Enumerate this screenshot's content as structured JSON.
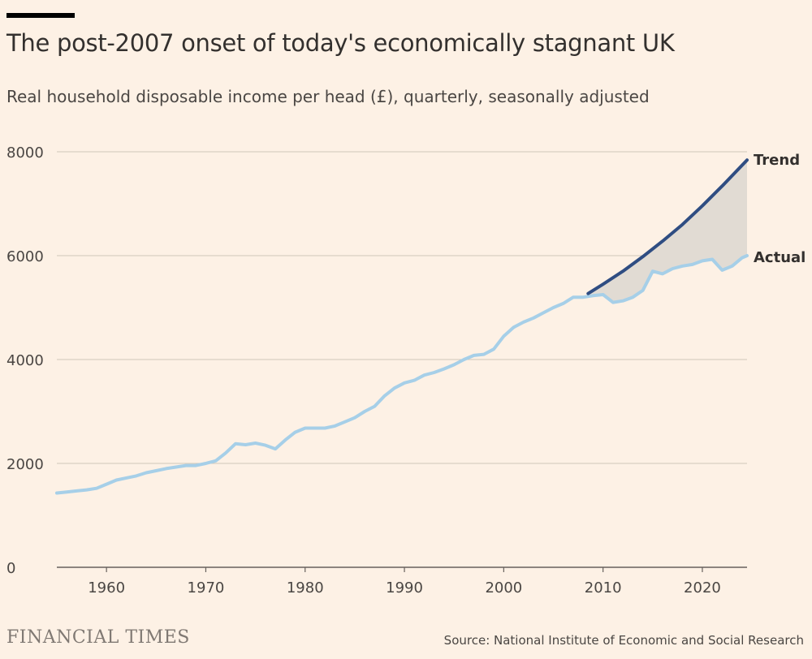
{
  "colors": {
    "background": "#fdf1e5",
    "actual": "#a6cfe8",
    "trend": "#2f4d82",
    "gap_fill": "#e1dbd3",
    "gridline": "#cec6b9"
  },
  "chart_data": {
    "type": "line",
    "title": "The post-2007 onset of today's economically stagnant UK",
    "subtitle": "Real household disposable income per head (£), quarterly, seasonally adjusted",
    "xlabel": "",
    "ylabel": "",
    "xlim": [
      1955,
      2024.5
    ],
    "ylim": [
      0,
      8000
    ],
    "grid": true,
    "y_ticks": [
      {
        "value": 0,
        "label": "0"
      },
      {
        "value": 2000,
        "label": "2000"
      },
      {
        "value": 4000,
        "label": "4000"
      },
      {
        "value": 6000,
        "label": "6000"
      },
      {
        "value": 8000,
        "label": "8000"
      }
    ],
    "x_ticks": [
      {
        "value": 1960,
        "label": "1960"
      },
      {
        "value": 1970,
        "label": "1970"
      },
      {
        "value": 1980,
        "label": "1980"
      },
      {
        "value": 1990,
        "label": "1990"
      },
      {
        "value": 2000,
        "label": "2000"
      },
      {
        "value": 2010,
        "label": "2010"
      },
      {
        "value": 2020,
        "label": "2020"
      }
    ],
    "series": [
      {
        "name": "Actual",
        "label": "Actual",
        "points": [
          [
            1955.0,
            1430
          ],
          [
            1956.0,
            1450
          ],
          [
            1957.0,
            1470
          ],
          [
            1958.0,
            1490
          ],
          [
            1959.0,
            1520
          ],
          [
            1960.0,
            1600
          ],
          [
            1961.0,
            1680
          ],
          [
            1962.0,
            1720
          ],
          [
            1963.0,
            1760
          ],
          [
            1964.0,
            1820
          ],
          [
            1965.0,
            1860
          ],
          [
            1966.0,
            1900
          ],
          [
            1967.0,
            1930
          ],
          [
            1968.0,
            1960
          ],
          [
            1969.0,
            1960
          ],
          [
            1970.0,
            2000
          ],
          [
            1971.0,
            2050
          ],
          [
            1972.0,
            2200
          ],
          [
            1973.0,
            2380
          ],
          [
            1974.0,
            2360
          ],
          [
            1975.0,
            2390
          ],
          [
            1976.0,
            2350
          ],
          [
            1977.0,
            2280
          ],
          [
            1978.0,
            2450
          ],
          [
            1979.0,
            2600
          ],
          [
            1980.0,
            2680
          ],
          [
            1981.0,
            2680
          ],
          [
            1982.0,
            2680
          ],
          [
            1983.0,
            2720
          ],
          [
            1984.0,
            2800
          ],
          [
            1985.0,
            2880
          ],
          [
            1986.0,
            3000
          ],
          [
            1987.0,
            3100
          ],
          [
            1988.0,
            3300
          ],
          [
            1989.0,
            3450
          ],
          [
            1990.0,
            3550
          ],
          [
            1991.0,
            3600
          ],
          [
            1992.0,
            3700
          ],
          [
            1993.0,
            3750
          ],
          [
            1994.0,
            3820
          ],
          [
            1995.0,
            3900
          ],
          [
            1996.0,
            4000
          ],
          [
            1997.0,
            4080
          ],
          [
            1998.0,
            4100
          ],
          [
            1999.0,
            4200
          ],
          [
            2000.0,
            4450
          ],
          [
            2001.0,
            4620
          ],
          [
            2002.0,
            4720
          ],
          [
            2003.0,
            4800
          ],
          [
            2004.0,
            4900
          ],
          [
            2005.0,
            5000
          ],
          [
            2006.0,
            5080
          ],
          [
            2007.0,
            5200
          ],
          [
            2008.0,
            5200
          ],
          [
            2009.0,
            5230
          ],
          [
            2010.0,
            5250
          ],
          [
            2011.0,
            5100
          ],
          [
            2012.0,
            5130
          ],
          [
            2013.0,
            5200
          ],
          [
            2014.0,
            5330
          ],
          [
            2015.0,
            5700
          ],
          [
            2016.0,
            5650
          ],
          [
            2017.0,
            5750
          ],
          [
            2018.0,
            5800
          ],
          [
            2019.0,
            5830
          ],
          [
            2020.0,
            5900
          ],
          [
            2021.0,
            5930
          ],
          [
            2022.0,
            5720
          ],
          [
            2023.0,
            5800
          ],
          [
            2024.0,
            5960
          ],
          [
            2024.5,
            6000
          ]
        ]
      },
      {
        "name": "Trend",
        "label": "Trend",
        "points": [
          [
            2008.5,
            5270
          ],
          [
            2010.0,
            5450
          ],
          [
            2012.0,
            5700
          ],
          [
            2014.0,
            5980
          ],
          [
            2016.0,
            6280
          ],
          [
            2018.0,
            6600
          ],
          [
            2020.0,
            6960
          ],
          [
            2022.0,
            7340
          ],
          [
            2024.5,
            7840
          ]
        ]
      }
    ]
  },
  "footer": {
    "logo": "FINANCIAL TIMES",
    "source": "Source: National Institute of Economic and Social Research"
  }
}
